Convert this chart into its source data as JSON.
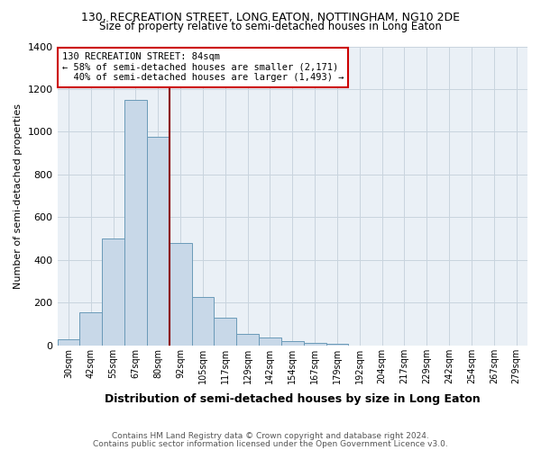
{
  "title_line1": "130, RECREATION STREET, LONG EATON, NOTTINGHAM, NG10 2DE",
  "title_line2": "Size of property relative to semi-detached houses in Long Eaton",
  "xlabel": "Distribution of semi-detached houses by size in Long Eaton",
  "ylabel": "Number of semi-detached properties",
  "footer_line1": "Contains HM Land Registry data © Crown copyright and database right 2024.",
  "footer_line2": "Contains public sector information licensed under the Open Government Licence v3.0.",
  "bin_labels": [
    "30sqm",
    "42sqm",
    "55sqm",
    "67sqm",
    "80sqm",
    "92sqm",
    "105sqm",
    "117sqm",
    "129sqm",
    "142sqm",
    "154sqm",
    "167sqm",
    "179sqm",
    "192sqm",
    "204sqm",
    "217sqm",
    "229sqm",
    "242sqm",
    "254sqm",
    "267sqm",
    "279sqm"
  ],
  "bin_values": [
    30,
    155,
    500,
    1150,
    975,
    480,
    225,
    130,
    55,
    35,
    20,
    12,
    8,
    0,
    0,
    0,
    0,
    0,
    0,
    0,
    0
  ],
  "bar_color": "#c8d8e8",
  "bar_edge_color": "#6a9ab8",
  "vline_color": "#8b0000",
  "annotation_box_edge": "#cc0000",
  "property_label": "130 RECREATION STREET: 84sqm",
  "pct_smaller": 58,
  "count_smaller": 2171,
  "pct_larger": 40,
  "count_larger": 1493,
  "vline_x": 4.5,
  "ylim": [
    0,
    1400
  ],
  "yticks": [
    0,
    200,
    400,
    600,
    800,
    1000,
    1200,
    1400
  ],
  "grid_color": "#c8d4de",
  "bg_color": "#eaf0f6",
  "title1_fontsize": 9,
  "title2_fontsize": 8.5,
  "ylabel_fontsize": 8,
  "xlabel_fontsize": 9,
  "tick_fontsize": 7,
  "annotation_fontsize": 7.5,
  "footer_fontsize": 6.5
}
